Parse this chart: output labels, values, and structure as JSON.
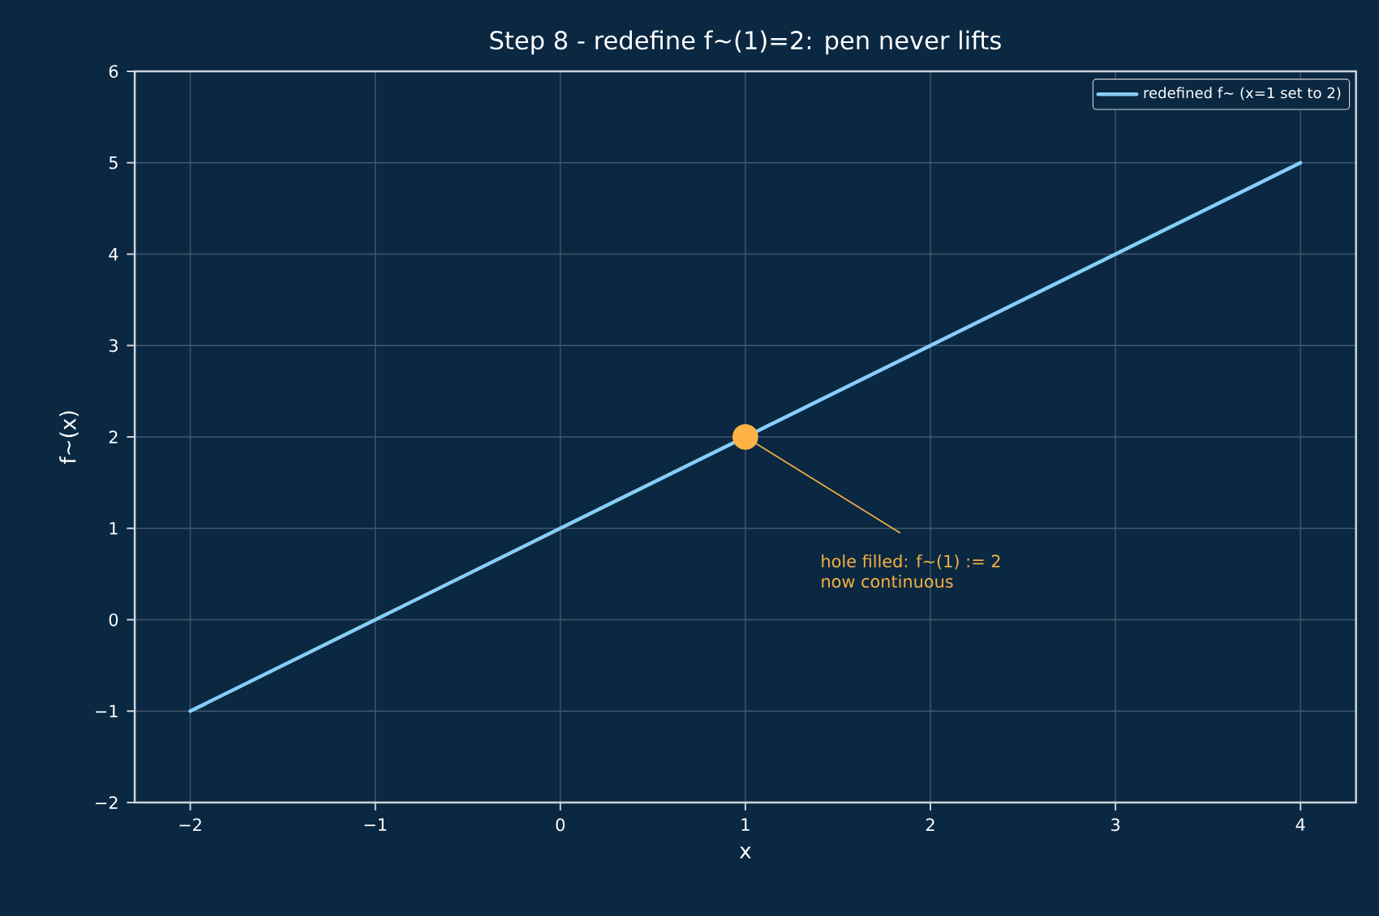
{
  "chart_data": {
    "type": "line",
    "title": "Step 8 - redefine f~(1)=2: pen never lifts",
    "xlabel": "x",
    "ylabel": "f~(x)",
    "xlim": [
      -2.3,
      4.3
    ],
    "xticks": [
      {
        "value": -2,
        "label": "−2"
      },
      {
        "value": -1,
        "label": "−1"
      },
      0,
      1,
      2,
      3,
      4
    ],
    "ylim": [
      -2,
      6
    ],
    "yticks": [
      {
        "value": -2,
        "label": "−2"
      },
      {
        "value": -1,
        "label": "−1"
      },
      0,
      1,
      2,
      3,
      4,
      5,
      6
    ],
    "grid": true,
    "legend": "top right",
    "series": [
      {
        "name": "redefined f~ (x=1 set to 2)",
        "color": "#87cefa",
        "x": [
          -2,
          4
        ],
        "values": [
          -1,
          5
        ],
        "marker": "none",
        "line_style": "solid"
      },
      {
        "type": "scatter",
        "color": "#ffb347",
        "x": [
          1
        ],
        "values": [
          2
        ],
        "marker": "circle"
      }
    ],
    "annotations": [
      {
        "text": "hole filled: f~(1) := 2",
        "x": 1,
        "y": 2
      },
      "now continuous"
    ]
  }
}
